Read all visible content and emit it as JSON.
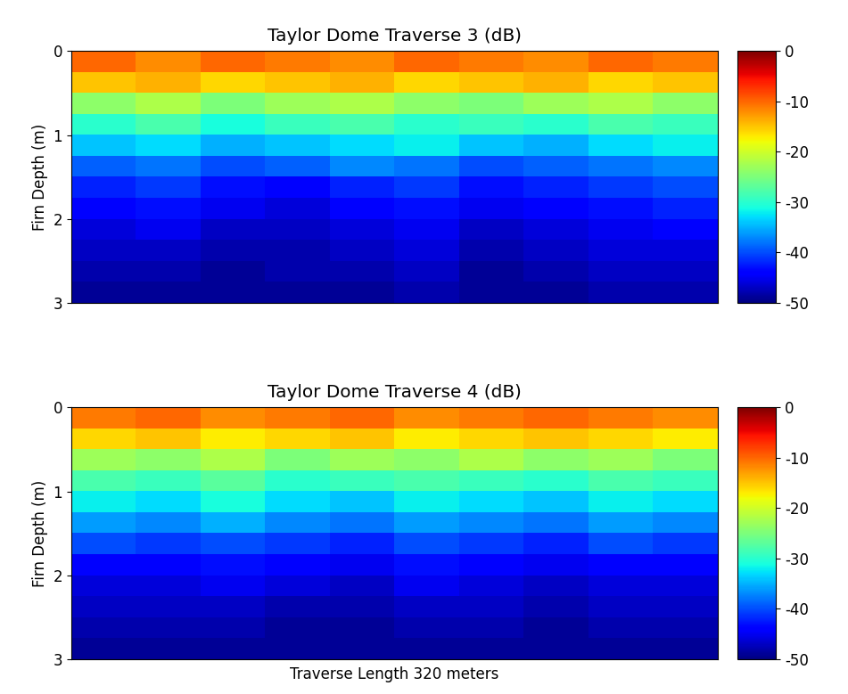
{
  "chart_data": [
    {
      "type": "heatmap",
      "title": "Taylor Dome Traverse 3 (dB)",
      "ylabel": "Firn Depth (m)",
      "tick_labels": "y",
      "xlim": [
        0,
        320
      ],
      "ylim": [
        3,
        0
      ],
      "yticks": [
        0,
        1,
        2,
        3
      ],
      "cells": [
        [
          -10,
          -12,
          -10,
          -11,
          -12,
          -10,
          -11,
          -12,
          -10,
          -11
        ],
        [
          -15,
          -14,
          -16,
          -15,
          -14,
          -16,
          -15,
          -14,
          -16,
          -15
        ],
        [
          -24,
          -22,
          -25,
          -23,
          -22,
          -24,
          -25,
          -23,
          -22,
          -24
        ],
        [
          -30,
          -28,
          -31,
          -29,
          -28,
          -30,
          -29,
          -30,
          -28,
          -29
        ],
        [
          -34,
          -33,
          -35,
          -34,
          -33,
          -32,
          -34,
          -35,
          -33,
          -32
        ],
        [
          -39,
          -38,
          -40,
          -39,
          -37,
          -38,
          -40,
          -39,
          -38,
          -37
        ],
        [
          -42,
          -41,
          -43,
          -44,
          -42,
          -41,
          -43,
          -42,
          -41,
          -40
        ],
        [
          -44,
          -43,
          -45,
          -46,
          -44,
          -43,
          -45,
          -44,
          -43,
          -42
        ],
        [
          -46,
          -45,
          -47,
          -47,
          -46,
          -45,
          -47,
          -46,
          -45,
          -44
        ],
        [
          -47,
          -47,
          -48,
          -48,
          -47,
          -46,
          -48,
          -47,
          -46,
          -46
        ],
        [
          -48,
          -48,
          -49,
          -48,
          -48,
          -47,
          -49,
          -48,
          -47,
          -47
        ],
        [
          -49,
          -49,
          -49,
          -49,
          -49,
          -48,
          -49,
          -49,
          -48,
          -48
        ]
      ],
      "colorbar": {
        "range": [
          -50,
          0
        ],
        "ticks": [
          0,
          -10,
          -20,
          -30,
          -40,
          -50
        ]
      }
    },
    {
      "type": "heatmap",
      "title": "Taylor Dome Traverse 4 (dB)",
      "ylabel": "Firn Depth (m)",
      "xlabel": "Traverse Length 320 meters",
      "tick_labels": "y",
      "xlim": [
        0,
        320
      ],
      "ylim": [
        3,
        0
      ],
      "yticks": [
        0,
        1,
        2,
        3
      ],
      "cells": [
        [
          -11,
          -10,
          -12,
          -11,
          -10,
          -12,
          -11,
          -10,
          -11,
          -12
        ],
        [
          -16,
          -15,
          -17,
          -16,
          -15,
          -17,
          -16,
          -15,
          -16,
          -17
        ],
        [
          -23,
          -24,
          -22,
          -25,
          -23,
          -24,
          -22,
          -24,
          -23,
          -25
        ],
        [
          -28,
          -29,
          -27,
          -30,
          -29,
          -28,
          -29,
          -30,
          -28,
          -29
        ],
        [
          -32,
          -33,
          -31,
          -33,
          -34,
          -32,
          -33,
          -34,
          -32,
          -33
        ],
        [
          -36,
          -37,
          -35,
          -37,
          -38,
          -36,
          -37,
          -38,
          -36,
          -37
        ],
        [
          -40,
          -41,
          -40,
          -41,
          -42,
          -40,
          -41,
          -42,
          -40,
          -41
        ],
        [
          -44,
          -44,
          -43,
          -44,
          -45,
          -43,
          -44,
          -45,
          -44,
          -44
        ],
        [
          -46,
          -46,
          -45,
          -46,
          -47,
          -45,
          -46,
          -47,
          -46,
          -46
        ],
        [
          -47,
          -47,
          -47,
          -48,
          -48,
          -47,
          -47,
          -48,
          -47,
          -47
        ],
        [
          -48,
          -48,
          -48,
          -49,
          -49,
          -48,
          -48,
          -49,
          -48,
          -48
        ],
        [
          -49,
          -49,
          -49,
          -49,
          -49,
          -49,
          -49,
          -49,
          -49,
          -49
        ]
      ],
      "colorbar": {
        "range": [
          -50,
          0
        ],
        "ticks": [
          0,
          -10,
          -20,
          -30,
          -40,
          -50
        ]
      }
    }
  ]
}
